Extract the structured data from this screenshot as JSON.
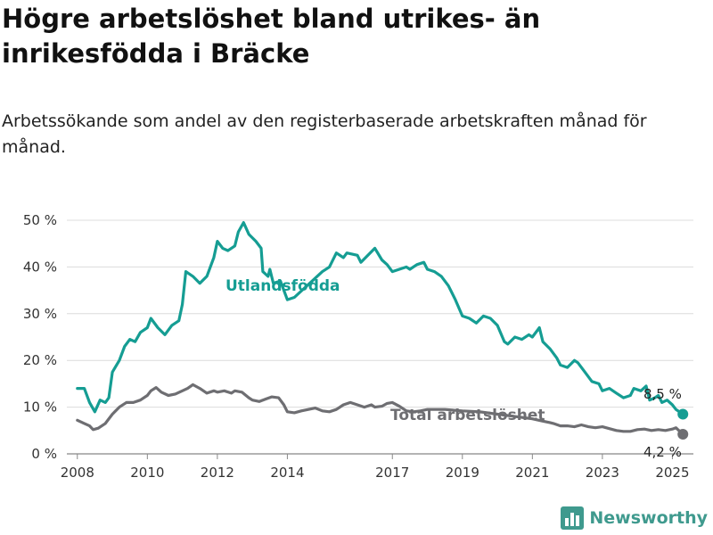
{
  "header": {
    "title": "Högre arbetslöshet bland utrikes- än inrikesfödda i Bräcke",
    "subtitle": "Arbetssökande som andel av den registerbaserade arbetskraften månad för månad."
  },
  "brand": {
    "name": "Newsworthy",
    "icon": "bar-chart-logo-icon",
    "color": "#3f9a8e"
  },
  "chart_data": {
    "type": "line",
    "title": "Högre arbetslöshet bland utrikes- än inrikesfödda i Bräcke",
    "subtitle": "Arbetssökande som andel av den registerbaserade arbetskraften månad för månad.",
    "xlabel": "",
    "ylabel": "",
    "x_ticks": [
      "2008",
      "2010",
      "2012",
      "2014",
      "2017",
      "2019",
      "2021",
      "2023",
      "2025"
    ],
    "x_tick_years": [
      2008,
      2010,
      2012,
      2014,
      2017,
      2019,
      2021,
      2023,
      2025
    ],
    "xlim": [
      2007.7,
      2025.6
    ],
    "y_ticks": [
      "0 %",
      "10 %",
      "20 %",
      "30 %",
      "40 %",
      "50 %"
    ],
    "y_tick_values": [
      0,
      10,
      20,
      30,
      40,
      50
    ],
    "ylim": [
      0,
      50
    ],
    "grid": true,
    "legend": "none",
    "series": [
      {
        "name": "Utlandsfödda",
        "color": "#159d93",
        "end_label": "8,5 %",
        "end_value": 8.5,
        "points": [
          [
            2008.0,
            14
          ],
          [
            2008.2,
            14
          ],
          [
            2008.35,
            11
          ],
          [
            2008.5,
            9
          ],
          [
            2008.65,
            11.5
          ],
          [
            2008.8,
            11
          ],
          [
            2008.9,
            12
          ],
          [
            2009.0,
            17.5
          ],
          [
            2009.2,
            20
          ],
          [
            2009.35,
            23
          ],
          [
            2009.5,
            24.5
          ],
          [
            2009.65,
            24
          ],
          [
            2009.8,
            26
          ],
          [
            2010.0,
            27
          ],
          [
            2010.1,
            29
          ],
          [
            2010.3,
            27
          ],
          [
            2010.5,
            25.5
          ],
          [
            2010.7,
            27.5
          ],
          [
            2010.9,
            28.5
          ],
          [
            2011.0,
            32
          ],
          [
            2011.1,
            39
          ],
          [
            2011.3,
            38
          ],
          [
            2011.5,
            36.5
          ],
          [
            2011.7,
            38
          ],
          [
            2011.9,
            42
          ],
          [
            2012.0,
            45.5
          ],
          [
            2012.15,
            44
          ],
          [
            2012.3,
            43.5
          ],
          [
            2012.5,
            44.5
          ],
          [
            2012.6,
            47.5
          ],
          [
            2012.75,
            49.5
          ],
          [
            2012.9,
            47
          ],
          [
            2013.1,
            45.5
          ],
          [
            2013.25,
            44
          ],
          [
            2013.3,
            39
          ],
          [
            2013.45,
            38
          ],
          [
            2013.5,
            39.5
          ],
          [
            2013.6,
            36.5
          ],
          [
            2013.8,
            37
          ],
          [
            2014.0,
            33
          ],
          [
            2014.2,
            33.5
          ],
          [
            2015.0,
            39
          ],
          [
            2015.2,
            40
          ],
          [
            2015.4,
            43
          ],
          [
            2015.6,
            42
          ],
          [
            2015.7,
            43
          ],
          [
            2016.0,
            42.5
          ],
          [
            2016.1,
            41
          ],
          [
            2016.3,
            42.5
          ],
          [
            2016.5,
            44
          ],
          [
            2016.7,
            41.5
          ],
          [
            2016.85,
            40.5
          ],
          [
            2017.0,
            39
          ],
          [
            2017.2,
            39.5
          ],
          [
            2017.4,
            40
          ],
          [
            2017.5,
            39.5
          ],
          [
            2017.7,
            40.5
          ],
          [
            2017.9,
            41
          ],
          [
            2018.0,
            39.5
          ],
          [
            2018.2,
            39
          ],
          [
            2018.4,
            38
          ],
          [
            2018.6,
            36
          ],
          [
            2018.8,
            33
          ],
          [
            2019.0,
            29.5
          ],
          [
            2019.2,
            29
          ],
          [
            2019.4,
            28
          ],
          [
            2019.6,
            29.5
          ],
          [
            2019.8,
            29
          ],
          [
            2020.0,
            27.5
          ],
          [
            2020.2,
            24
          ],
          [
            2020.3,
            23.5
          ],
          [
            2020.5,
            25
          ],
          [
            2020.7,
            24.5
          ],
          [
            2020.9,
            25.5
          ],
          [
            2021.0,
            25
          ],
          [
            2021.2,
            27
          ],
          [
            2021.3,
            24
          ],
          [
            2021.5,
            22.5
          ],
          [
            2021.7,
            20.5
          ],
          [
            2021.8,
            19
          ],
          [
            2022.0,
            18.5
          ],
          [
            2022.2,
            20
          ],
          [
            2022.3,
            19.5
          ],
          [
            2022.5,
            17.5
          ],
          [
            2022.7,
            15.5
          ],
          [
            2022.9,
            15
          ],
          [
            2023.0,
            13.5
          ],
          [
            2023.2,
            14
          ],
          [
            2023.4,
            13
          ],
          [
            2023.6,
            12
          ],
          [
            2023.8,
            12.5
          ],
          [
            2023.9,
            14
          ],
          [
            2024.1,
            13.5
          ],
          [
            2024.25,
            14.5
          ],
          [
            2024.35,
            11.5
          ],
          [
            2024.5,
            12
          ],
          [
            2024.6,
            12.5
          ],
          [
            2024.7,
            11
          ],
          [
            2024.85,
            11.5
          ],
          [
            2025.0,
            10.5
          ],
          [
            2025.1,
            9.5
          ],
          [
            2025.3,
            8.5
          ]
        ]
      },
      {
        "name": "Total arbetslöshet",
        "color": "#6e6e72",
        "end_label": "4,2 %",
        "end_value": 4.2,
        "points": [
          [
            2008.0,
            7.2
          ],
          [
            2008.2,
            6.5
          ],
          [
            2008.35,
            6
          ],
          [
            2008.45,
            5.2
          ],
          [
            2008.6,
            5.5
          ],
          [
            2008.8,
            6.5
          ],
          [
            2009.0,
            8.5
          ],
          [
            2009.2,
            10
          ],
          [
            2009.4,
            11
          ],
          [
            2009.6,
            11
          ],
          [
            2009.8,
            11.5
          ],
          [
            2010.0,
            12.5
          ],
          [
            2010.1,
            13.5
          ],
          [
            2010.25,
            14.2
          ],
          [
            2010.4,
            13.2
          ],
          [
            2010.6,
            12.5
          ],
          [
            2010.8,
            12.8
          ],
          [
            2011.0,
            13.5
          ],
          [
            2011.15,
            14
          ],
          [
            2011.3,
            14.8
          ],
          [
            2011.5,
            14
          ],
          [
            2011.7,
            13
          ],
          [
            2011.9,
            13.5
          ],
          [
            2012.0,
            13.2
          ],
          [
            2012.2,
            13.5
          ],
          [
            2012.4,
            13
          ],
          [
            2012.5,
            13.5
          ],
          [
            2012.7,
            13.2
          ],
          [
            2012.9,
            12
          ],
          [
            2013.0,
            11.5
          ],
          [
            2013.2,
            11.2
          ],
          [
            2013.4,
            11.8
          ],
          [
            2013.55,
            12.2
          ],
          [
            2013.75,
            12
          ],
          [
            2013.9,
            10.5
          ],
          [
            2014.0,
            9
          ],
          [
            2014.2,
            8.8
          ],
          [
            2014.4,
            9.2
          ],
          [
            2014.6,
            9.5
          ],
          [
            2014.8,
            9.8
          ],
          [
            2015.0,
            9.2
          ],
          [
            2015.2,
            9
          ],
          [
            2015.4,
            9.5
          ],
          [
            2015.6,
            10.5
          ],
          [
            2015.8,
            11
          ],
          [
            2016.0,
            10.5
          ],
          [
            2016.2,
            10
          ],
          [
            2016.4,
            10.5
          ],
          [
            2016.5,
            10
          ],
          [
            2016.7,
            10.2
          ],
          [
            2016.85,
            10.8
          ],
          [
            2017.0,
            11
          ],
          [
            2017.2,
            10.2
          ],
          [
            2017.4,
            9.2
          ],
          [
            2017.6,
            9
          ],
          [
            2017.8,
            9.2
          ],
          [
            2018.0,
            9.5
          ],
          [
            2018.5,
            9.5
          ],
          [
            2019.0,
            9.2
          ],
          [
            2019.5,
            9
          ],
          [
            2020.0,
            8.5
          ],
          [
            2020.5,
            8
          ],
          [
            2021.0,
            7.5
          ],
          [
            2021.3,
            7
          ],
          [
            2021.5,
            6.7
          ],
          [
            2021.6,
            6.5
          ],
          [
            2021.8,
            6
          ],
          [
            2022.0,
            6
          ],
          [
            2022.2,
            5.8
          ],
          [
            2022.4,
            6.2
          ],
          [
            2022.6,
            5.8
          ],
          [
            2022.8,
            5.6
          ],
          [
            2023.0,
            5.8
          ],
          [
            2023.2,
            5.4
          ],
          [
            2023.4,
            5
          ],
          [
            2023.6,
            4.8
          ],
          [
            2023.8,
            4.8
          ],
          [
            2024.0,
            5.2
          ],
          [
            2024.2,
            5.3
          ],
          [
            2024.4,
            5
          ],
          [
            2024.6,
            5.2
          ],
          [
            2024.8,
            5
          ],
          [
            2025.0,
            5.3
          ],
          [
            2025.1,
            5.6
          ],
          [
            2025.3,
            4.2
          ]
        ]
      }
    ]
  }
}
